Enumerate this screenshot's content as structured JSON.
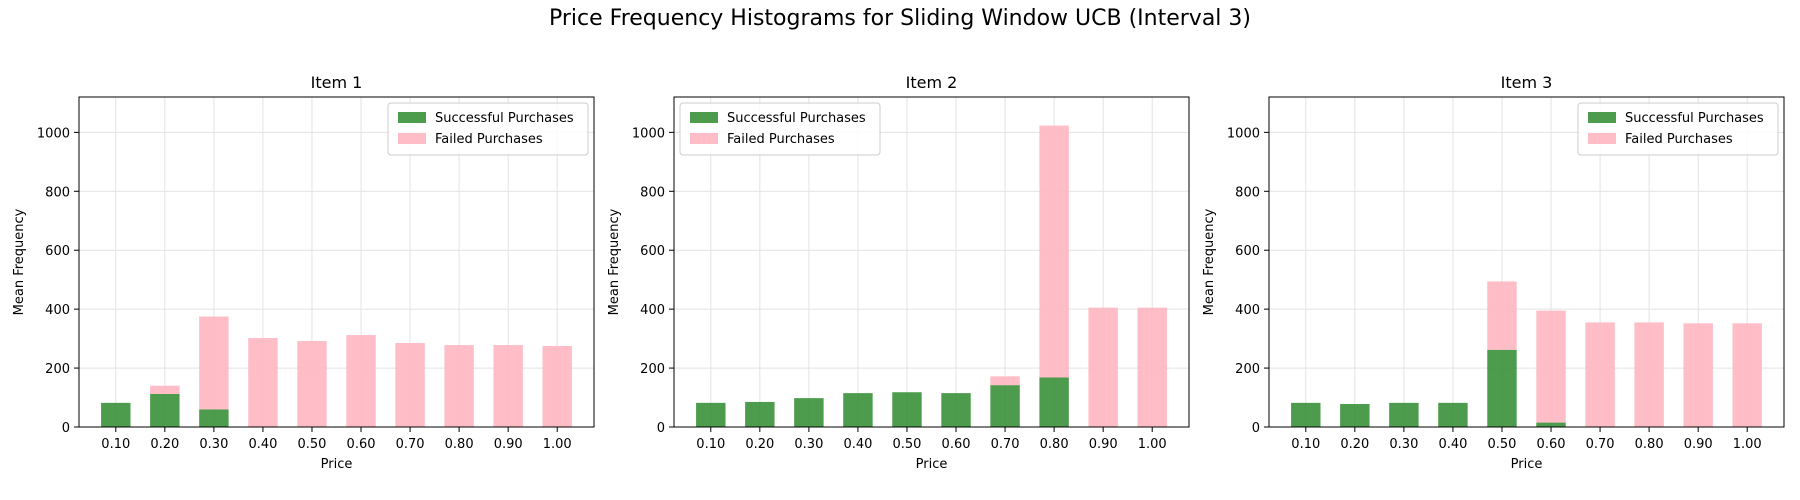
{
  "suptitle": "Price Frequency Histograms for Sliding Window UCB (Interval 3)",
  "colors": {
    "success": "#2e8b2e",
    "failed": "#ffb6c1",
    "grid": "#e3e3e3",
    "axis": "#000000"
  },
  "chart_data": [
    {
      "type": "bar",
      "stacked": true,
      "title": "Item 1",
      "xlabel": "Price",
      "ylabel": "Mean Frequency",
      "categories": [
        "0.10",
        "0.20",
        "0.30",
        "0.40",
        "0.50",
        "0.60",
        "0.70",
        "0.80",
        "0.90",
        "1.00"
      ],
      "series": [
        {
          "name": "Successful Purchases",
          "values": [
            82,
            112,
            60,
            0,
            0,
            0,
            0,
            0,
            0,
            0
          ]
        },
        {
          "name": "Failed Purchases",
          "values": [
            0,
            28,
            315,
            302,
            292,
            312,
            285,
            278,
            278,
            275
          ]
        }
      ],
      "ylim": [
        0,
        1120
      ],
      "yticks": [
        0,
        200,
        400,
        600,
        800,
        1000
      ],
      "legend": "top-right",
      "grid": true
    },
    {
      "type": "bar",
      "stacked": true,
      "title": "Item 2",
      "xlabel": "Price",
      "ylabel": "Mean Frequency",
      "categories": [
        "0.10",
        "0.20",
        "0.30",
        "0.40",
        "0.50",
        "0.60",
        "0.70",
        "0.80",
        "0.90",
        "1.00"
      ],
      "series": [
        {
          "name": "Successful Purchases",
          "values": [
            82,
            85,
            98,
            115,
            118,
            115,
            142,
            168,
            0,
            0
          ]
        },
        {
          "name": "Failed Purchases",
          "values": [
            0,
            0,
            0,
            0,
            0,
            0,
            30,
            855,
            405,
            405
          ]
        }
      ],
      "ylim": [
        0,
        1120
      ],
      "yticks": [
        0,
        200,
        400,
        600,
        800,
        1000
      ],
      "legend": "top-left",
      "grid": true
    },
    {
      "type": "bar",
      "stacked": true,
      "title": "Item 3",
      "xlabel": "Price",
      "ylabel": "Mean Frequency",
      "categories": [
        "0.10",
        "0.20",
        "0.30",
        "0.40",
        "0.50",
        "0.60",
        "0.70",
        "0.80",
        "0.90",
        "1.00"
      ],
      "series": [
        {
          "name": "Successful Purchases",
          "values": [
            82,
            78,
            82,
            82,
            262,
            15,
            0,
            0,
            0,
            0
          ]
        },
        {
          "name": "Failed Purchases",
          "values": [
            0,
            0,
            0,
            0,
            232,
            380,
            355,
            355,
            352,
            352
          ]
        }
      ],
      "ylim": [
        0,
        1120
      ],
      "yticks": [
        0,
        200,
        400,
        600,
        800,
        1000
      ],
      "legend": "top-right",
      "grid": true
    }
  ]
}
